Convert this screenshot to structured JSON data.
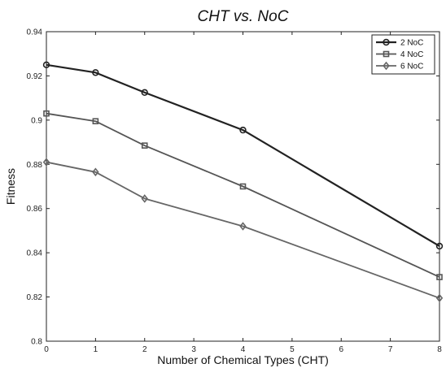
{
  "chart_data": {
    "type": "line",
    "title": "CHT vs. NoC",
    "xlabel": "Number of Chemical Types (CHT)",
    "ylabel": "Fitness",
    "xlim": [
      0,
      8
    ],
    "ylim": [
      0.8,
      0.94
    ],
    "xticks": [
      0,
      1,
      2,
      3,
      4,
      5,
      6,
      7,
      8
    ],
    "yticks": [
      0.8,
      0.82,
      0.84,
      0.86,
      0.88,
      0.9,
      0.92,
      0.94
    ],
    "x": [
      0,
      1,
      2,
      4,
      8
    ],
    "legend_position": "top-right",
    "grid": false,
    "series": [
      {
        "name": "2 NoC",
        "marker": "circle",
        "color": "#222222",
        "values": [
          0.925,
          0.9215,
          0.9125,
          0.8955,
          0.843
        ]
      },
      {
        "name": "4 NoC",
        "marker": "square",
        "color": "#555555",
        "values": [
          0.903,
          0.8995,
          0.8885,
          0.87,
          0.829
        ]
      },
      {
        "name": "6 NoC",
        "marker": "diamond",
        "color": "#666666",
        "values": [
          0.881,
          0.8765,
          0.8645,
          0.852,
          0.8195
        ]
      }
    ]
  }
}
